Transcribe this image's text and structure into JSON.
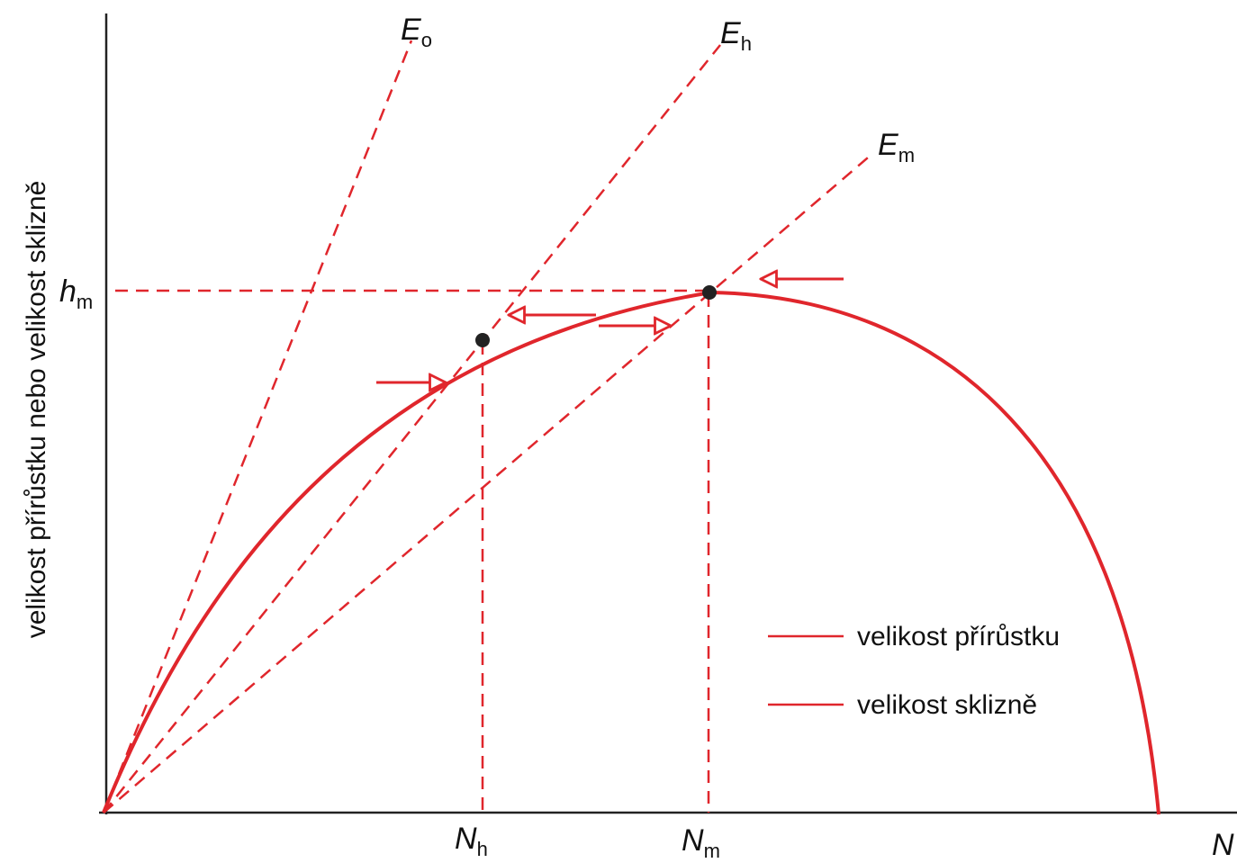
{
  "y_axis_label": "velikost přírůstku nebo velikost sklizně",
  "labels": {
    "e_o": {
      "main": "E",
      "sub": "o"
    },
    "e_h": {
      "main": "E",
      "sub": "h"
    },
    "e_m": {
      "main": "E",
      "sub": "m"
    },
    "h_m": {
      "main": "h",
      "sub": "m"
    },
    "n_h": {
      "main": "N",
      "sub": "h"
    },
    "n_m": {
      "main": "N",
      "sub": "m"
    },
    "n": "N"
  },
  "legend": [
    "velikost přírůstku",
    "velikost sklizně"
  ]
}
